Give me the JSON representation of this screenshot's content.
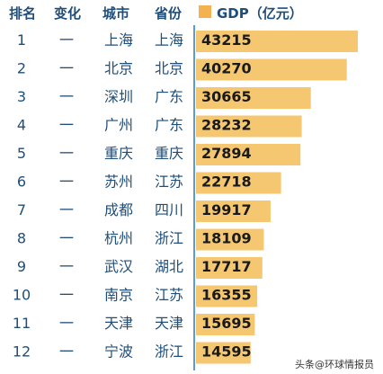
{
  "headers": {
    "rank": "排名",
    "change": "变化",
    "city": "城市",
    "province": "省份",
    "gdp": "GDP（亿元）"
  },
  "watermark": "头条@环球情报员",
  "colors": {
    "bar": "#f6c771",
    "legend": "#f4b14f",
    "text": "#1f4e79",
    "divider": "#5b9bd5"
  },
  "chart_data": {
    "type": "bar",
    "orientation": "horizontal",
    "rows": [
      {
        "rank": "1",
        "change": "一",
        "city": "上海",
        "province": "上海",
        "value": 43215
      },
      {
        "rank": "2",
        "change": "一",
        "city": "北京",
        "province": "北京",
        "value": 40270
      },
      {
        "rank": "3",
        "change": "一",
        "city": "深圳",
        "province": "广东",
        "value": 30665
      },
      {
        "rank": "4",
        "change": "一",
        "city": "广州",
        "province": "广东",
        "value": 28232
      },
      {
        "rank": "5",
        "change": "一",
        "city": "重庆",
        "province": "重庆",
        "value": 27894
      },
      {
        "rank": "6",
        "change": "一",
        "city": "苏州",
        "province": "江苏",
        "value": 22718
      },
      {
        "rank": "7",
        "change": "一",
        "city": "成都",
        "province": "四川",
        "value": 19917
      },
      {
        "rank": "8",
        "change": "一",
        "city": "杭州",
        "province": "浙江",
        "value": 18109
      },
      {
        "rank": "9",
        "change": "一",
        "city": "武汉",
        "province": "湖北",
        "value": 17717
      },
      {
        "rank": "10",
        "change": "一",
        "city": "南京",
        "province": "江苏",
        "value": 16355
      },
      {
        "rank": "11",
        "change": "一",
        "city": "天津",
        "province": "天津",
        "value": 15695
      },
      {
        "rank": "12",
        "change": "一",
        "city": "宁波",
        "province": "浙江",
        "value": 14595
      }
    ]
  }
}
